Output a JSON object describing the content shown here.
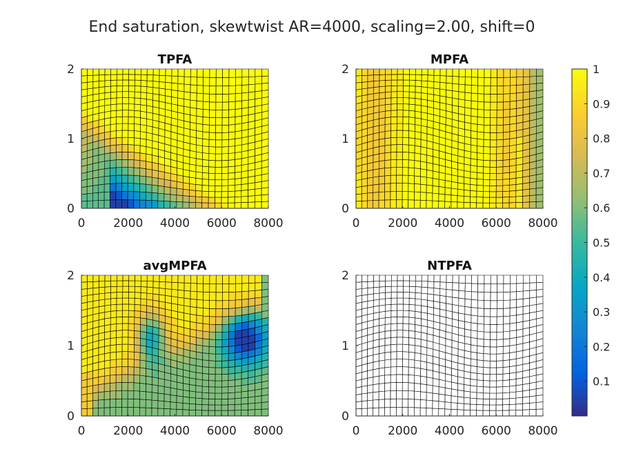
{
  "figure": {
    "title": "End saturation, skewtwist AR=4000, scaling=2.00, shift=0"
  },
  "chart_data": [
    {
      "type": "heatmap",
      "title": "TPFA",
      "xlim": [
        0,
        8000
      ],
      "ylim": [
        0,
        2
      ],
      "xticks": [
        "0",
        "2000",
        "4000",
        "6000",
        "8000"
      ],
      "yticks": [
        "0",
        "1",
        "2"
      ],
      "grid": "skewtwist, 30x20 cells",
      "value_field": "saturation",
      "description": "high saturation (~1) in the upper-right region; low values (~0.05-0.3) along the bottom-left, rising to ~0.5-0.7 along the left edge"
    },
    {
      "type": "heatmap",
      "title": "MPFA",
      "xlim": [
        0,
        8000
      ],
      "ylim": [
        0,
        2
      ],
      "xticks": [
        "0",
        "2000",
        "4000",
        "6000",
        "8000"
      ],
      "yticks": [
        "0",
        "1",
        "2"
      ],
      "grid": "skewtwist, 30x20 cells",
      "value_field": "saturation",
      "description": "mostly ~0.95-1; ~0.8-0.85 bands near the left and right; ~0.6 along the right edge"
    },
    {
      "type": "heatmap",
      "title": "avgMPFA",
      "xlim": [
        0,
        8000
      ],
      "ylim": [
        0,
        2
      ],
      "xticks": [
        "0",
        "2000",
        "4000",
        "6000",
        "8000"
      ],
      "yticks": [
        "0",
        "1",
        "2"
      ],
      "grid": "skewtwist, 30x20 cells",
      "value_field": "saturation",
      "description": "~0.95 in the upper half; ~0.6-0.65 in the lower part; a ~0.4 pocket near x=3000, y=1.1 and a ~0.25-0.35 region near x=7000, y=1.1"
    },
    {
      "type": "heatmap",
      "title": "NTPFA",
      "xlim": [
        0,
        8000
      ],
      "ylim": [
        0,
        2
      ],
      "xticks": [
        "0",
        "2000",
        "4000",
        "6000",
        "8000"
      ],
      "yticks": [
        "0",
        "1",
        "2"
      ],
      "grid": "skewtwist, 30x20 cells",
      "value_field": "saturation",
      "description": "mesh only, no fill"
    }
  ],
  "colorbar": {
    "colormap": "parula",
    "range": [
      0,
      1
    ],
    "ticks": [
      "0.1",
      "0.2",
      "0.3",
      "0.4",
      "0.5",
      "0.6",
      "0.7",
      "0.8",
      "0.9",
      "1"
    ]
  }
}
